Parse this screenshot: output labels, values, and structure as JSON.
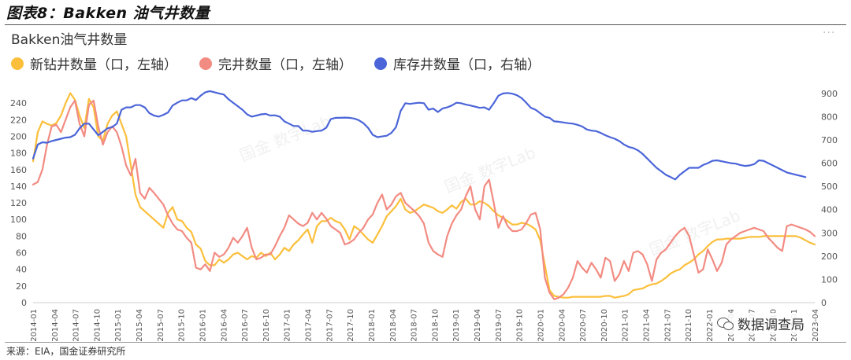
{
  "figure_title": "图表8：Bakken 油气井数量",
  "watermark_text": "国金 数字Lab",
  "badge_text": "数据调查局",
  "source_note": "来源：EIA，国金证券研究所",
  "chart_data": {
    "type": "line",
    "title": "Bakken油气井数量",
    "x_tick_labels": [
      "2014-01",
      "2014-04",
      "2014-07",
      "2014-10",
      "2015-01",
      "2015-04",
      "2015-07",
      "2015-10",
      "2016-01",
      "2016-04",
      "2016-07",
      "2016-10",
      "2017-01",
      "2017-04",
      "2017-07",
      "2017-10",
      "2018-01",
      "2018-04",
      "2018-07",
      "2018-10",
      "2019-01",
      "2019-04",
      "2019-07",
      "2019-10",
      "2020-01",
      "2020-04",
      "2020-07",
      "2020-10",
      "2021-01",
      "2021-04",
      "2021-07",
      "2021-10",
      "2022-01",
      "2022-04",
      "2022-07",
      "2022-10",
      "2023-01",
      "2023-04"
    ],
    "y_left": {
      "ticks": [
        0,
        20,
        40,
        60,
        80,
        100,
        120,
        140,
        160,
        180,
        200,
        220,
        240
      ],
      "lim": [
        0,
        260
      ]
    },
    "y_right": {
      "ticks": [
        0,
        100,
        200,
        300,
        400,
        500,
        600,
        700,
        800,
        900
      ],
      "lim": [
        0,
        930
      ]
    },
    "grid": false,
    "legend_position": "top-left",
    "series": [
      {
        "name": "新钻井数量（口，左轴）",
        "axis": "left",
        "color": "#FBBF3B",
        "values": [
          170,
          205,
          218,
          215,
          213,
          216,
          225,
          240,
          252,
          244,
          225,
          210,
          245,
          235,
          200,
          195,
          215,
          225,
          230,
          215,
          200,
          165,
          130,
          115,
          110,
          105,
          100,
          95,
          90,
          108,
          115,
          100,
          98,
          90,
          85,
          70,
          65,
          50,
          45,
          45,
          52,
          48,
          52,
          58,
          60,
          56,
          52,
          56,
          54,
          60,
          56,
          60,
          52,
          58,
          66,
          62,
          70,
          75,
          82,
          88,
          72,
          92,
          98,
          98,
          102,
          98,
          96,
          88,
          76,
          92,
          88,
          82,
          76,
          72,
          82,
          92,
          104,
          110,
          116,
          125,
          112,
          108,
          110,
          114,
          118,
          116,
          114,
          110,
          108,
          112,
          117,
          113,
          121,
          125,
          118,
          118,
          122,
          120,
          116,
          110,
          105,
          102,
          98,
          94,
          94,
          96,
          95,
          92,
          88,
          75,
          45,
          15,
          8,
          7,
          6,
          6,
          7,
          7,
          7,
          7,
          7,
          7,
          7,
          8,
          8,
          6,
          7,
          8,
          10,
          15,
          16,
          17,
          20,
          22,
          23,
          26,
          30,
          35,
          38,
          40,
          45,
          48,
          52,
          58,
          62,
          68,
          73,
          76,
          76,
          77,
          77,
          77,
          77,
          78,
          79,
          79,
          79,
          80,
          80,
          80,
          80,
          80,
          80,
          80,
          80,
          78,
          75,
          72,
          70
        ]
      },
      {
        "name": "完井数量（口，左轴）",
        "axis": "left",
        "color": "#F28B82",
        "values": [
          142,
          145,
          160,
          190,
          212,
          214,
          205,
          220,
          235,
          243,
          215,
          200,
          238,
          243,
          212,
          190,
          205,
          212,
          205,
          188,
          165,
          153,
          173,
          132,
          125,
          138,
          132,
          125,
          118,
          105,
          95,
          88,
          86,
          78,
          72,
          42,
          40,
          46,
          38,
          60,
          55,
          58,
          66,
          78,
          72,
          80,
          90,
          66,
          52,
          54,
          58,
          58,
          68,
          80,
          90,
          105,
          100,
          95,
          92,
          96,
          108,
          100,
          108,
          101,
          92,
          88,
          84,
          70,
          72,
          76,
          84,
          90,
          100,
          106,
          120,
          130,
          112,
          118,
          128,
          132,
          120,
          115,
          110,
          104,
          95,
          72,
          62,
          58,
          55,
          80,
          95,
          105,
          112,
          128,
          140,
          112,
          100,
          140,
          148,
          120,
          90,
          104,
          92,
          86,
          86,
          88,
          96,
          106,
          108,
          88,
          30,
          12,
          4,
          6,
          10,
          18,
          30,
          50,
          42,
          36,
          48,
          40,
          30,
          54,
          50,
          26,
          34,
          50,
          38,
          60,
          62,
          58,
          46,
          26,
          52,
          60,
          64,
          72,
          80,
          86,
          90,
          80,
          58,
          36,
          40,
          64,
          52,
          38,
          48,
          70,
          76,
          80,
          84,
          86,
          88,
          90,
          88,
          86,
          78,
          72,
          66,
          62,
          92,
          94,
          92,
          90,
          88,
          85,
          80
        ]
      },
      {
        "name": "库存井数量（口，右轴）",
        "axis": "right",
        "color": "#4B65D9",
        "values": [
          620,
          680,
          690,
          688,
          695,
          700,
          705,
          710,
          712,
          722,
          750,
          770,
          770,
          745,
          720,
          735,
          750,
          755,
          770,
          830,
          840,
          840,
          850,
          850,
          840,
          815,
          805,
          800,
          808,
          818,
          848,
          860,
          870,
          870,
          880,
          872,
          890,
          905,
          910,
          905,
          900,
          895,
          875,
          860,
          845,
          830,
          810,
          800,
          805,
          810,
          812,
          805,
          806,
          800,
          780,
          770,
          760,
          760,
          740,
          740,
          735,
          738,
          740,
          752,
          790,
          795,
          795,
          796,
          795,
          792,
          785,
          772,
          752,
          722,
          712,
          715,
          718,
          730,
          755,
          825,
          858,
          855,
          858,
          860,
          858,
          830,
          835,
          820,
          835,
          840,
          848,
          860,
          858,
          852,
          848,
          843,
          838,
          840,
          830,
          858,
          890,
          900,
          902,
          899,
          892,
          880,
          860,
          838,
          830,
          815,
          800,
          795,
          780,
          778,
          775,
          772,
          770,
          765,
          758,
          745,
          740,
          738,
          730,
          720,
          712,
          705,
          695,
          680,
          670,
          665,
          655,
          640,
          620,
          600,
          580,
          565,
          550,
          540,
          530,
          550,
          565,
          580,
          580,
          580,
          592,
          600,
          610,
          612,
          608,
          604,
          600,
          598,
          592,
          588,
          590,
          596,
          612,
          610,
          600,
          590,
          580,
          570,
          560,
          555,
          550,
          545,
          540
        ]
      }
    ]
  }
}
